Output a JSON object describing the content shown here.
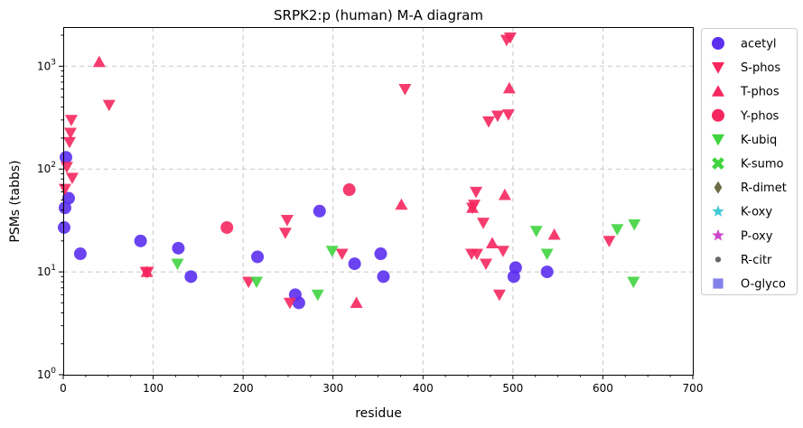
{
  "chart_data": {
    "type": "scatter",
    "title": "SRPK2:p (human) M-A diagram",
    "xlabel": "residue",
    "ylabel": "PSMs (tabbs)",
    "xlim": [
      0,
      700
    ],
    "ylim": [
      1,
      2400
    ],
    "yscale": "log",
    "grid": true,
    "legend_position": "outside-right",
    "x_ticks": [
      "0",
      "100",
      "200",
      "300",
      "400",
      "500",
      "600",
      "700"
    ],
    "y_ticks": [
      "10^0",
      "10^1",
      "10^2",
      "10^3"
    ],
    "series": [
      {
        "name": "acetyl",
        "marker": "circle",
        "color": "#5b2ff0",
        "points": [
          [
            1,
            27
          ],
          [
            2,
            42
          ],
          [
            3,
            130
          ],
          [
            6,
            52
          ],
          [
            19,
            15
          ],
          [
            86,
            20
          ],
          [
            128,
            17
          ],
          [
            142,
            9
          ],
          [
            216,
            14
          ],
          [
            258,
            6
          ],
          [
            262,
            5
          ],
          [
            285,
            39
          ],
          [
            324,
            12
          ],
          [
            353,
            15
          ],
          [
            356,
            9
          ],
          [
            501,
            9
          ],
          [
            503,
            11
          ],
          [
            538,
            10
          ]
        ]
      },
      {
        "name": "S-phos",
        "marker": "triangle-down",
        "color": "#f5275e",
        "points": [
          [
            2,
            64
          ],
          [
            4,
            105
          ],
          [
            7,
            183
          ],
          [
            8,
            225
          ],
          [
            9,
            300
          ],
          [
            10,
            82
          ],
          [
            51,
            420
          ],
          [
            92,
            10
          ],
          [
            94,
            10
          ],
          [
            206,
            8
          ],
          [
            247,
            24
          ],
          [
            249,
            32
          ],
          [
            252,
            5
          ],
          [
            310,
            15
          ],
          [
            380,
            600
          ],
          [
            454,
            15
          ],
          [
            455,
            42
          ],
          [
            457,
            45
          ],
          [
            459,
            60
          ],
          [
            460,
            15
          ],
          [
            467,
            30
          ],
          [
            470,
            12
          ],
          [
            473,
            290
          ],
          [
            483,
            330
          ],
          [
            485,
            6
          ],
          [
            489,
            16
          ],
          [
            493,
            1800
          ],
          [
            495,
            340
          ],
          [
            497,
            1900
          ],
          [
            607,
            20
          ]
        ]
      },
      {
        "name": "T-phos",
        "marker": "triangle-up",
        "color": "#f5275e",
        "points": [
          [
            40,
            1100
          ],
          [
            93,
            10
          ],
          [
            326,
            5
          ],
          [
            376,
            45
          ],
          [
            455,
            42
          ],
          [
            477,
            19
          ],
          [
            491,
            56
          ],
          [
            496,
            610
          ],
          [
            546,
            23
          ]
        ]
      },
      {
        "name": "Y-phos",
        "marker": "circle",
        "color": "#f5275e",
        "points": [
          [
            182,
            27
          ],
          [
            318,
            63
          ]
        ]
      },
      {
        "name": "K-ubiq",
        "marker": "triangle-down",
        "color": "#3fd43f",
        "points": [
          [
            127,
            12
          ],
          [
            215,
            8
          ],
          [
            283,
            6
          ],
          [
            299,
            16
          ],
          [
            526,
            25
          ],
          [
            538,
            15
          ],
          [
            616,
            26
          ],
          [
            635,
            29
          ],
          [
            634,
            8
          ]
        ]
      },
      {
        "name": "K-sumo",
        "marker": "x",
        "color": "#3fd43f",
        "points": []
      },
      {
        "name": "R-dimet",
        "marker": "diamond",
        "color": "#6b6b45",
        "points": []
      },
      {
        "name": "K-oxy",
        "marker": "star",
        "color": "#3ec9d6",
        "points": []
      },
      {
        "name": "P-oxy",
        "marker": "star",
        "color": "#cc44cc",
        "points": []
      },
      {
        "name": "R-citr",
        "marker": "dot",
        "color": "#666666",
        "points": []
      },
      {
        "name": "O-glyco",
        "marker": "square",
        "color": "#6f6ae8",
        "points": []
      }
    ]
  }
}
